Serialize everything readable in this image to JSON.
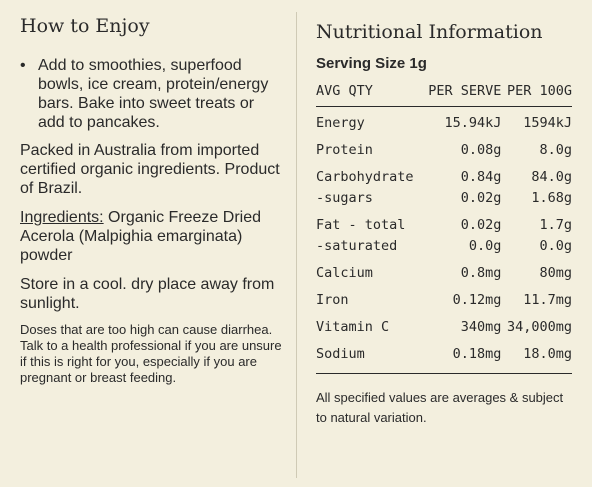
{
  "left": {
    "title": "How to Enjoy",
    "bullet": "Add to smoothies, superfood bowls, ice cream, protein/energy bars. Bake into sweet treats or add to pancakes.",
    "origin": "Packed in Australia from imported certified organic ingredients. Product of Brazil.",
    "ingredients_label": "Ingredients:",
    "ingredients": " Organic Freeze Dried Acerola (Malpighia emarginata) powder",
    "storage": "Store in a cool. dry place away from sunlight.",
    "warning": "Doses that are too high can cause diarrhea. Talk to a health professional if you are unsure if this is right for you, especially if you are pregnant or breast feeding."
  },
  "right": {
    "title": "Nutritional Information",
    "serving": "Serving Size 1g",
    "headers": [
      "AVG QTY",
      "PER SERVE",
      "PER 100G"
    ],
    "rows": [
      [
        "Energy",
        "15.94kJ",
        "1594kJ"
      ],
      [
        "Protein",
        "0.08g",
        "8.0g"
      ],
      [
        "Carbohydrate",
        "0.84g",
        "84.0g"
      ],
      [
        "-sugars",
        "0.02g",
        "1.68g"
      ],
      [
        "Fat - total",
        "0.02g",
        "1.7g"
      ],
      [
        "-saturated",
        "0.0g",
        "0.0g"
      ],
      [
        "Calcium",
        "0.8mg",
        "80mg"
      ],
      [
        "Iron",
        "0.12mg",
        "11.7mg"
      ],
      [
        "Vitamin C",
        "340mg",
        "34,000mg"
      ],
      [
        "Sodium",
        "0.18mg",
        "18.0mg"
      ]
    ],
    "footnote": "All specified values are averages & subject to natural variation."
  }
}
